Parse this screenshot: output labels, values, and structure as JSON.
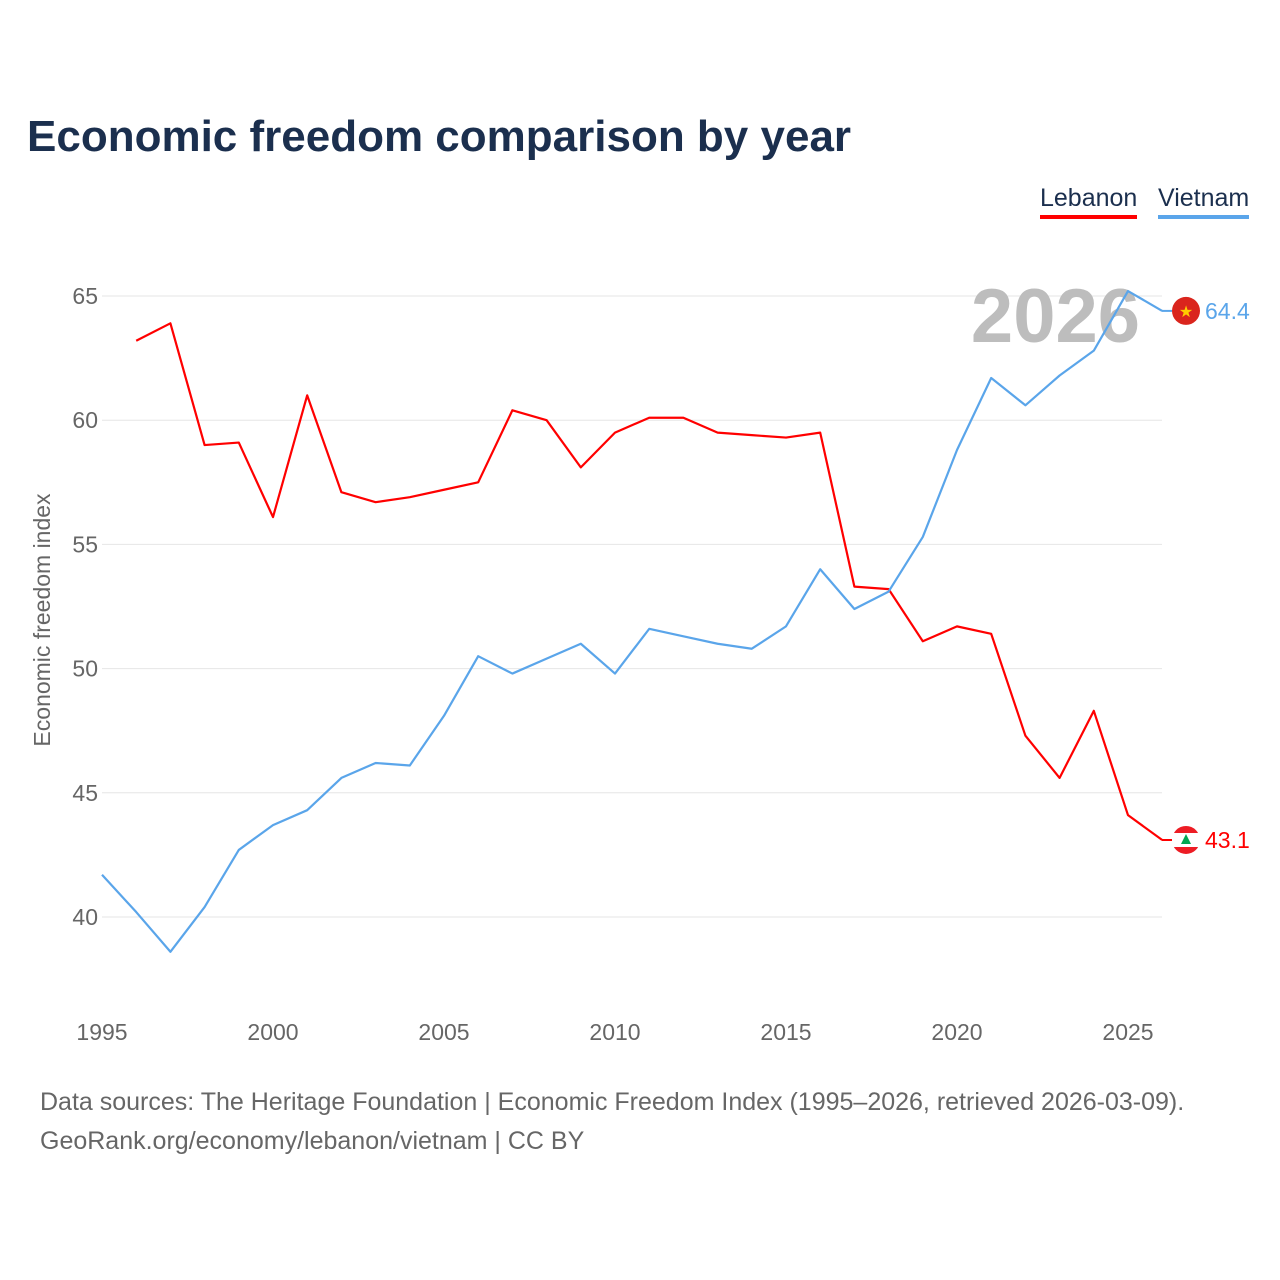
{
  "title": "Economic freedom comparison by year",
  "footer": {
    "line1": "Data sources: The Heritage Foundation | Economic Freedom Index (1995–2026, retrieved 2026-03-09).",
    "line2": "GeoRank.org/economy/lebanon/vietnam | CC BY"
  },
  "chart_data": {
    "type": "line",
    "title": "Economic freedom comparison by year",
    "ylabel": "Economic freedom index",
    "xlabel": "",
    "year_watermark": "2026",
    "xlim": [
      1995,
      2026
    ],
    "ylim": [
      36,
      67
    ],
    "xticks": [
      "1995",
      "2000",
      "2005",
      "2010",
      "2015",
      "2020",
      "2025"
    ],
    "yticks": [
      "40",
      "45",
      "50",
      "55",
      "60",
      "65"
    ],
    "grid": true,
    "legend_position": "top-right",
    "series": [
      {
        "name": "Lebanon",
        "color": "#ff0000",
        "end_label": "43.1",
        "flag": "lebanon-flag",
        "x": [
          1996,
          1997,
          1998,
          1999,
          2000,
          2001,
          2002,
          2003,
          2004,
          2005,
          2006,
          2007,
          2008,
          2009,
          2010,
          2011,
          2012,
          2013,
          2014,
          2015,
          2016,
          2017,
          2018,
          2019,
          2020,
          2021,
          2022,
          2023,
          2024,
          2025,
          2026
        ],
        "values": [
          63.2,
          63.9,
          59.0,
          59.1,
          56.1,
          61.0,
          57.1,
          56.7,
          56.9,
          57.2,
          57.5,
          60.4,
          60.0,
          58.1,
          59.5,
          60.1,
          60.1,
          59.5,
          59.4,
          59.3,
          59.5,
          53.3,
          53.2,
          51.1,
          51.7,
          51.4,
          47.3,
          45.6,
          48.3,
          44.1,
          43.1
        ]
      },
      {
        "name": "Vietnam",
        "color": "#5aa5ea",
        "end_label": "64.4",
        "flag": "vietnam-flag",
        "x": [
          1995,
          1996,
          1997,
          1998,
          1999,
          2000,
          2001,
          2002,
          2003,
          2004,
          2005,
          2006,
          2007,
          2008,
          2009,
          2010,
          2011,
          2012,
          2013,
          2014,
          2015,
          2016,
          2017,
          2018,
          2019,
          2020,
          2021,
          2022,
          2023,
          2024,
          2025,
          2026
        ],
        "values": [
          41.7,
          40.2,
          38.6,
          40.4,
          42.7,
          43.7,
          44.3,
          45.6,
          46.2,
          46.1,
          48.1,
          50.5,
          49.8,
          50.4,
          51.0,
          49.8,
          51.6,
          51.3,
          51.0,
          50.8,
          51.7,
          54.0,
          52.4,
          53.1,
          55.3,
          58.8,
          61.7,
          60.6,
          61.8,
          62.8,
          65.2,
          64.4
        ]
      }
    ]
  }
}
